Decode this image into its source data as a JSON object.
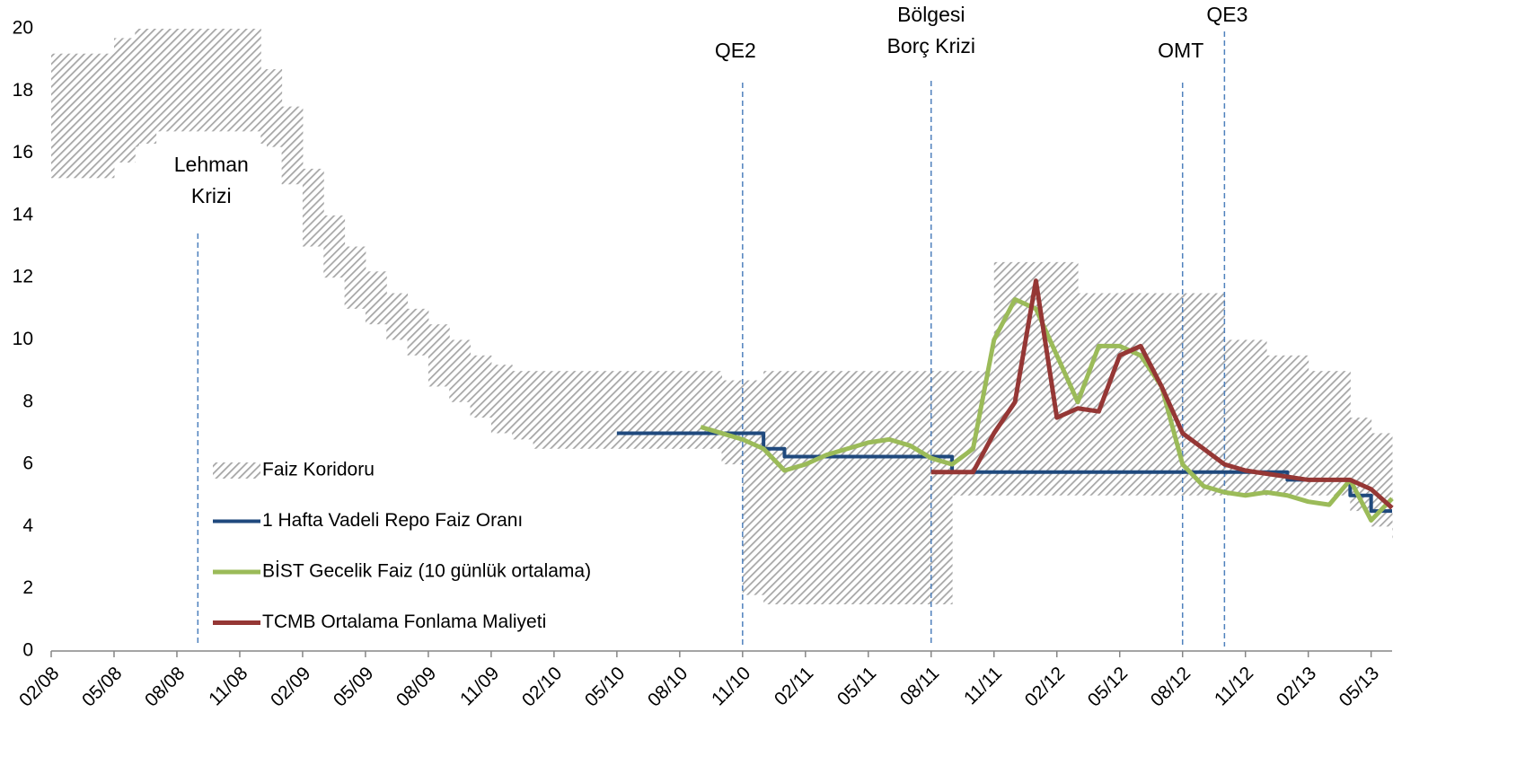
{
  "chart_data": {
    "type": "line",
    "x": [
      "02/08",
      "03/08",
      "04/08",
      "05/08",
      "06/08",
      "07/08",
      "08/08",
      "09/08",
      "10/08",
      "11/08",
      "12/08",
      "01/09",
      "02/09",
      "03/09",
      "04/09",
      "05/09",
      "06/09",
      "07/09",
      "08/09",
      "09/09",
      "10/09",
      "11/09",
      "12/09",
      "01/10",
      "02/10",
      "03/10",
      "04/10",
      "05/10",
      "06/10",
      "07/10",
      "08/10",
      "09/10",
      "10/10",
      "11/10",
      "12/10",
      "01/11",
      "02/11",
      "03/11",
      "04/11",
      "05/11",
      "06/11",
      "07/11",
      "08/11",
      "09/11",
      "10/11",
      "11/11",
      "12/11",
      "01/12",
      "02/12",
      "03/12",
      "04/12",
      "05/12",
      "06/12",
      "07/12",
      "08/12",
      "09/12",
      "10/12",
      "11/12",
      "12/12",
      "01/13",
      "02/13",
      "03/13",
      "04/13",
      "05/13",
      "06/13"
    ],
    "xlim": [
      "02/08",
      "06/13"
    ],
    "xticks": [
      "02/08",
      "05/08",
      "08/08",
      "11/08",
      "02/09",
      "05/09",
      "08/09",
      "11/09",
      "02/10",
      "05/10",
      "08/10",
      "11/10",
      "02/11",
      "05/11",
      "08/11",
      "11/11",
      "02/12",
      "05/12",
      "08/12",
      "11/12",
      "02/13",
      "05/13"
    ],
    "ylim": [
      0,
      20
    ],
    "yticks": [
      0,
      2,
      4,
      6,
      8,
      10,
      12,
      14,
      16,
      18,
      20
    ],
    "series": [
      {
        "name": "Faiz Koridoru",
        "type": "band",
        "color": "#a6a6a6",
        "lower": [
          15.2,
          15.2,
          15.2,
          15.7,
          16.2,
          16.7,
          16.7,
          16.7,
          16.7,
          16.7,
          16.2,
          15,
          13,
          12,
          11,
          10.5,
          10,
          9.5,
          8.5,
          8,
          7.5,
          7,
          6.8,
          6.5,
          6.5,
          6.5,
          6.5,
          6.5,
          6.5,
          6.5,
          6.5,
          6.5,
          6,
          1.8,
          1.5,
          1.5,
          1.5,
          1.5,
          1.5,
          1.5,
          1.5,
          1.5,
          1.5,
          5,
          5,
          5,
          5,
          5,
          5,
          5,
          5,
          5,
          5,
          5,
          5,
          5,
          5,
          5,
          5,
          5,
          5,
          5,
          4.5,
          4,
          3.5
        ],
        "upper": [
          19.2,
          19.2,
          19.2,
          19.7,
          20,
          20,
          20,
          20,
          20,
          20,
          18.7,
          17.5,
          15.5,
          14,
          13,
          12.2,
          11.5,
          11,
          10.5,
          10,
          9.5,
          9.2,
          9,
          9,
          9,
          9,
          9,
          9,
          9,
          9,
          9,
          9,
          8.7,
          8.7,
          9,
          9,
          9,
          9,
          9,
          9,
          9,
          9,
          9,
          9,
          9,
          12.5,
          12.5,
          12.5,
          12.5,
          11.5,
          11.5,
          11.5,
          11.5,
          11.5,
          11.5,
          11.5,
          10,
          10,
          9.5,
          9.5,
          9,
          9,
          7.5,
          7,
          6.5
        ]
      },
      {
        "name": "1 Hafta Vadeli Repo Faiz Oranı",
        "color": "#1f497d",
        "step": true,
        "values": [
          null,
          null,
          null,
          null,
          null,
          null,
          null,
          null,
          null,
          null,
          null,
          null,
          null,
          null,
          null,
          null,
          null,
          null,
          null,
          null,
          null,
          null,
          null,
          null,
          null,
          null,
          null,
          7,
          7,
          7,
          7,
          7,
          7,
          7,
          6.5,
          6.25,
          6.25,
          6.25,
          6.25,
          6.25,
          6.25,
          6.25,
          6.25,
          5.75,
          5.75,
          5.75,
          5.75,
          5.75,
          5.75,
          5.75,
          5.75,
          5.75,
          5.75,
          5.75,
          5.75,
          5.75,
          5.75,
          5.75,
          5.75,
          5.5,
          5.5,
          5.5,
          5,
          4.5,
          4.5
        ]
      },
      {
        "name": "BİST Gecelik Faiz (10 günlük ortalama)",
        "color": "#9bbb59",
        "values": [
          null,
          null,
          null,
          null,
          null,
          null,
          null,
          null,
          null,
          null,
          null,
          null,
          null,
          null,
          null,
          null,
          null,
          null,
          null,
          null,
          null,
          null,
          null,
          null,
          null,
          null,
          null,
          null,
          null,
          null,
          null,
          7.2,
          7,
          6.8,
          6.5,
          5.8,
          6,
          6.3,
          6.5,
          6.7,
          6.8,
          6.6,
          6.2,
          6,
          6.5,
          10,
          11.3,
          11,
          9.5,
          8,
          9.8,
          9.8,
          9.5,
          8.5,
          6,
          5.3,
          5.1,
          5,
          5.1,
          5,
          4.8,
          4.7,
          5.5,
          4.2,
          4.9
        ]
      },
      {
        "name": "TCMB Ortalama Fonlama Maliyeti",
        "color": "#953735",
        "values": [
          null,
          null,
          null,
          null,
          null,
          null,
          null,
          null,
          null,
          null,
          null,
          null,
          null,
          null,
          null,
          null,
          null,
          null,
          null,
          null,
          null,
          null,
          null,
          null,
          null,
          null,
          null,
          null,
          null,
          null,
          null,
          null,
          null,
          null,
          null,
          null,
          null,
          null,
          null,
          null,
          null,
          null,
          5.75,
          5.75,
          5.75,
          7,
          8,
          11.9,
          7.5,
          7.8,
          7.7,
          9.5,
          9.8,
          8.5,
          7,
          6.5,
          6,
          5.8,
          5.7,
          5.6,
          5.5,
          5.5,
          5.5,
          5.2,
          4.6
        ]
      }
    ],
    "annotations": [
      {
        "x": "09/08",
        "text": [
          "Lehman",
          "Krizi"
        ]
      },
      {
        "x": "11/10",
        "text": [
          "QE2"
        ]
      },
      {
        "x": "08/11",
        "text": [
          "Bölgesi",
          "Borç Krizi"
        ]
      },
      {
        "x": "08/12",
        "text": [
          "OMT"
        ]
      },
      {
        "x": "10/12",
        "text": [
          "QE3"
        ]
      }
    ]
  }
}
